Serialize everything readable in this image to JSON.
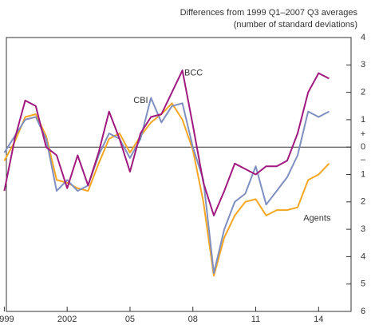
{
  "chart_data": {
    "type": "line",
    "subtitle_lines": [
      "Differences from 1999 Q1–2007 Q3 averages",
      "(number of standard deviations)"
    ],
    "sign_plus": "+",
    "sign_minus": "–",
    "x": [
      1999,
      1999.5,
      2000,
      2000.5,
      2001,
      2001.5,
      2002,
      2002.5,
      2003,
      2003.5,
      2004,
      2004.5,
      2005,
      2005.5,
      2006,
      2006.5,
      2007,
      2007.5,
      2008,
      2008.5,
      2009,
      2009.5,
      2010,
      2010.5,
      2011,
      2011.5,
      2012,
      2012.5,
      2013,
      2013.5,
      2014,
      2014.5
    ],
    "xlim": [
      1999.1,
      2015.55
    ],
    "xticks": [
      {
        "value": 1999,
        "label": "1999"
      },
      {
        "value": 2002,
        "label": "2002"
      },
      {
        "value": 2005,
        "label": "05"
      },
      {
        "value": 2008,
        "label": "08"
      },
      {
        "value": 2011,
        "label": "11"
      },
      {
        "value": 2014,
        "label": "14"
      }
    ],
    "ylim": [
      -6,
      4
    ],
    "yticks": [
      4,
      3,
      2,
      1,
      0,
      {
        "value": -1,
        "label": "1"
      },
      {
        "value": -2,
        "label": "2"
      },
      {
        "value": -3,
        "label": "3"
      },
      {
        "value": -4,
        "label": "4"
      },
      {
        "value": -5,
        "label": "5"
      },
      {
        "value": -6,
        "label": "6"
      }
    ],
    "series": [
      {
        "name": "Agents",
        "color": "#f5a623",
        "values": [
          -0.5,
          0.2,
          1.1,
          1.2,
          0.4,
          -1.2,
          -1.3,
          -1.5,
          -1.6,
          -0.6,
          0.3,
          0.5,
          -0.2,
          0.4,
          0.9,
          1.2,
          1.6,
          1.0,
          -0.1,
          -2.0,
          -4.7,
          -3.3,
          -2.5,
          -2.0,
          -1.9,
          -2.5,
          -2.3,
          -2.3,
          -2.2,
          -1.2,
          -1.0,
          -0.6
        ]
      },
      {
        "name": "CBI",
        "color": "#7f8fc0",
        "values": [
          -0.2,
          0.4,
          1.0,
          1.1,
          0.3,
          -1.6,
          -1.2,
          -1.6,
          -1.4,
          -0.3,
          0.5,
          0.3,
          -0.4,
          0.3,
          1.8,
          0.9,
          1.5,
          1.6,
          0.0,
          -1.2,
          -4.6,
          -3.0,
          -2.0,
          -1.7,
          -0.7,
          -2.1,
          -1.6,
          -1.1,
          -0.3,
          1.3,
          1.1,
          1.3
        ]
      },
      {
        "name": "BCC",
        "color": "#a0197f",
        "values": [
          -1.6,
          0.3,
          1.7,
          1.5,
          0.0,
          -0.3,
          -1.5,
          -0.3,
          -1.4,
          -0.2,
          1.3,
          0.3,
          -0.9,
          0.5,
          1.1,
          1.2,
          2.0,
          2.8,
          0.8,
          -1.3,
          -2.5,
          -1.6,
          -0.6,
          -0.8,
          -1.0,
          -0.7,
          -0.7,
          -0.5,
          0.5,
          2.0,
          2.7,
          2.5
        ]
      }
    ]
  }
}
